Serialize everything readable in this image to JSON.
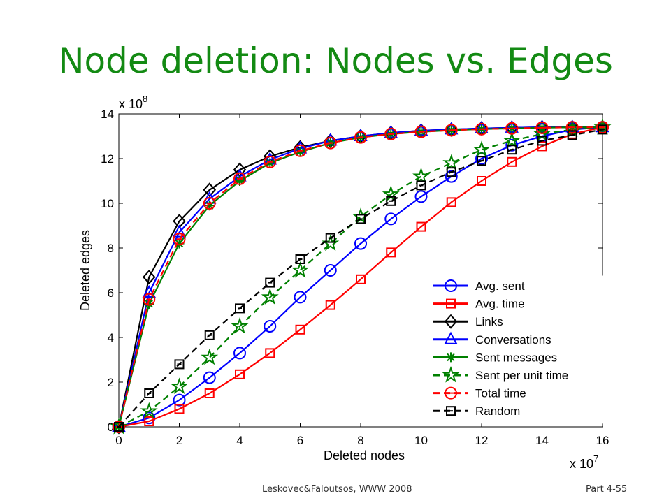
{
  "slide": {
    "title": "Node deletion: Nodes vs. Edges",
    "footer_left": "Leskovec&Faloutsos, WWW 2008",
    "footer_right": "Part 4-55",
    "title_color": "#138a13"
  },
  "chart_data": {
    "type": "line",
    "title": "",
    "xlabel": "Deleted nodes",
    "ylabel": "Deleted edges",
    "x_multiplier": "x 10^7",
    "y_multiplier": "x 10^8",
    "xlim": [
      0,
      16
    ],
    "ylim": [
      0,
      14
    ],
    "x_ticks": [
      0,
      2,
      4,
      6,
      8,
      10,
      12,
      14,
      16
    ],
    "y_ticks": [
      0,
      2,
      4,
      6,
      8,
      10,
      12,
      14
    ],
    "grid": false,
    "legend_position": "bottom-right",
    "x": [
      0,
      1,
      2,
      3,
      4,
      5,
      6,
      7,
      8,
      9,
      10,
      11,
      12,
      13,
      14,
      15,
      16
    ],
    "series": [
      {
        "name": "Avg. sent",
        "color": "#0000ff",
        "marker": "circle",
        "dash": "solid",
        "values": [
          0,
          0.4,
          1.2,
          2.2,
          3.3,
          4.5,
          5.8,
          7.0,
          8.2,
          9.3,
          10.3,
          11.2,
          12.0,
          12.6,
          13.0,
          13.3,
          13.4
        ]
      },
      {
        "name": "Avg. time",
        "color": "#ff0000",
        "marker": "square",
        "dash": "solid",
        "values": [
          0,
          0.25,
          0.8,
          1.5,
          2.35,
          3.3,
          4.35,
          5.45,
          6.6,
          7.8,
          8.95,
          10.05,
          11.0,
          11.85,
          12.55,
          13.1,
          13.4
        ]
      },
      {
        "name": "Links",
        "color": "#000000",
        "marker": "diamond",
        "dash": "solid",
        "values": [
          0,
          6.7,
          9.2,
          10.6,
          11.5,
          12.1,
          12.5,
          12.8,
          13.0,
          13.15,
          13.25,
          13.3,
          13.35,
          13.38,
          13.4,
          13.4,
          13.4
        ]
      },
      {
        "name": "Conversations",
        "color": "#0000ff",
        "marker": "triangle",
        "dash": "solid",
        "values": [
          0,
          6.0,
          8.7,
          10.2,
          11.2,
          11.95,
          12.45,
          12.8,
          13.0,
          13.15,
          13.25,
          13.3,
          13.35,
          13.38,
          13.4,
          13.4,
          13.4
        ]
      },
      {
        "name": "Sent messages",
        "color": "#008000",
        "marker": "asterisk",
        "dash": "solid",
        "values": [
          0,
          5.5,
          8.2,
          9.9,
          11.0,
          11.8,
          12.3,
          12.7,
          12.95,
          13.1,
          13.2,
          13.27,
          13.32,
          13.35,
          13.38,
          13.4,
          13.4
        ]
      },
      {
        "name": "Sent per unit time",
        "color": "#008000",
        "marker": "star",
        "dash": "dashed",
        "values": [
          0,
          0.7,
          1.8,
          3.1,
          4.5,
          5.8,
          7.0,
          8.2,
          9.4,
          10.4,
          11.2,
          11.8,
          12.4,
          12.8,
          13.1,
          13.3,
          13.4
        ]
      },
      {
        "name": "Total time",
        "color": "#ff0000",
        "marker": "circle-minus",
        "dash": "dashed",
        "values": [
          0,
          5.7,
          8.4,
          10.0,
          11.1,
          11.85,
          12.35,
          12.7,
          12.95,
          13.1,
          13.2,
          13.27,
          13.32,
          13.35,
          13.38,
          13.4,
          13.4
        ]
      },
      {
        "name": "Random",
        "color": "#000000",
        "marker": "square-minus",
        "dash": "dashed",
        "values": [
          0,
          1.5,
          2.8,
          4.1,
          5.3,
          6.45,
          7.5,
          8.45,
          9.3,
          10.1,
          10.8,
          11.4,
          11.9,
          12.4,
          12.8,
          13.05,
          13.3
        ]
      }
    ]
  }
}
